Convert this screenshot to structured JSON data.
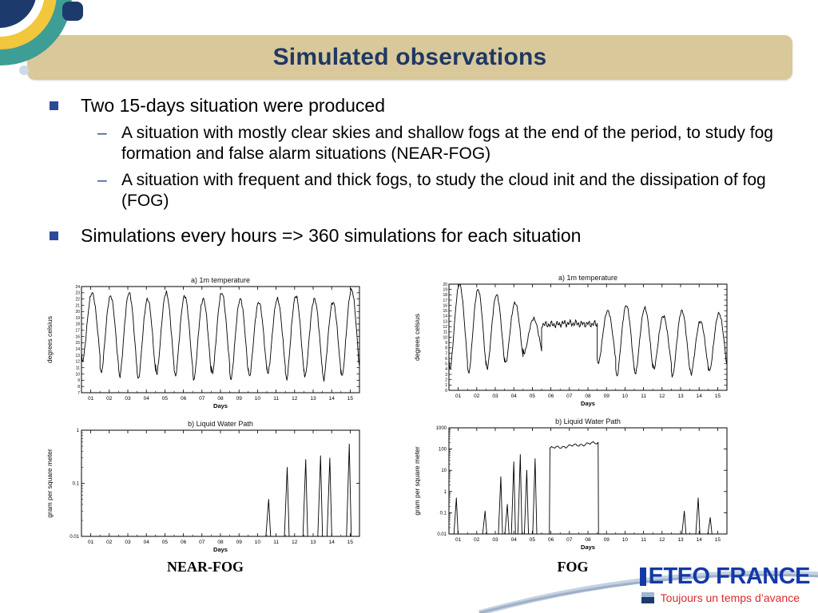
{
  "slide": {
    "title": "Simulated observations",
    "sub_marker": "–",
    "bullets": [
      {
        "text": "Two 15-days situation were produced",
        "subs": [
          "A situation with mostly clear skies and shallow fogs at the end of the period, to study fog formation and false alarm situations (NEAR-FOG)",
          "A situation with frequent and thick fogs, to study the cloud init and the dissipation of fog (FOG)"
        ]
      },
      {
        "text": "Simulations every hours => 360 simulations for each situation",
        "subs": []
      }
    ],
    "chart_captions": {
      "left": "NEAR-FOG",
      "right": "FOG"
    },
    "logo": {
      "name": "ETEO FRANCE",
      "tagline": "Toujours un temps d’avance"
    }
  },
  "colors": {
    "header_bar": "#d9c89a",
    "title_blue": "#1f3864",
    "bullet_blue": "#2b4a9b",
    "logo_blue": "#1439a6",
    "tagline_red": "#d92b30",
    "corner_navy": "#1d3a6d",
    "corner_teal": "#3d9e95",
    "corner_yellow": "#f2c63d",
    "chart_line": "#000000"
  },
  "chart_data": [
    {
      "id": "nearfog-temp",
      "type": "line",
      "panel": "NEAR-FOG",
      "title": "a) 1m temperature",
      "ylabel": "degrees celsius",
      "xlabel": "Days",
      "xticks": [
        "01",
        "02",
        "03",
        "04",
        "05",
        "06",
        "07",
        "08",
        "09",
        "10",
        "11",
        "12",
        "13",
        "14",
        "15"
      ],
      "ylim": [
        7,
        24
      ],
      "ytick_step": 1,
      "series": [
        {
          "name": "1m temperature",
          "daily_min": [
            12,
            10,
            9.5,
            9,
            10,
            9.5,
            9,
            10,
            9,
            9.5,
            10,
            9,
            9.5,
            9,
            9.5
          ],
          "daily_max": [
            23,
            22.5,
            23,
            22,
            23,
            22.5,
            22,
            23,
            22,
            21.5,
            22,
            22.5,
            22,
            21.5,
            23.5
          ]
        }
      ]
    },
    {
      "id": "fog-temp",
      "type": "line",
      "panel": "FOG",
      "title": "a) 1m temperature",
      "ylabel": "degrees celsius",
      "xlabel": "Days",
      "xticks": [
        "01",
        "02",
        "03",
        "04",
        "05",
        "06",
        "07",
        "08",
        "09",
        "10",
        "11",
        "12",
        "13",
        "14",
        "15"
      ],
      "ylim": [
        0,
        20
      ],
      "ytick_step": 1,
      "series": [
        {
          "name": "1m temperature",
          "daily_min": [
            4,
            3,
            4,
            5,
            7,
            11.9,
            12.1,
            12.0,
            5,
            2.5,
            3,
            4,
            2.5,
            3,
            3.5
          ],
          "daily_max": [
            20,
            19,
            18,
            16.5,
            13.5,
            12.9,
            13.1,
            13.0,
            15,
            16,
            15.5,
            14,
            15,
            13,
            14.5
          ]
        }
      ]
    },
    {
      "id": "nearfog-lwp",
      "type": "line",
      "panel": "NEAR-FOG",
      "title": "b) Liquid Water Path",
      "ylabel": "gram per square meter",
      "xlabel": "Days",
      "xticks": [
        "01",
        "02",
        "03",
        "04",
        "05",
        "06",
        "07",
        "08",
        "09",
        "10",
        "11",
        "12",
        "13",
        "14",
        "15"
      ],
      "ylim": [
        0.01,
        1
      ],
      "yticks": [
        0.01,
        0.1,
        1
      ],
      "spike_width": 0.15,
      "spikes": [
        {
          "x": 10.6,
          "peak": 0.05
        },
        {
          "x": 11.6,
          "peak": 0.2
        },
        {
          "x": 12.6,
          "peak": 0.28
        },
        {
          "x": 13.4,
          "peak": 0.33
        },
        {
          "x": 13.9,
          "peak": 0.3
        },
        {
          "x": 14.95,
          "peak": 0.55
        }
      ]
    },
    {
      "id": "fog-lwp",
      "type": "line",
      "panel": "FOG",
      "title": "b) Liquid Water Path",
      "ylabel": "gram per square meter",
      "xlabel": "Days",
      "xticks": [
        "01",
        "02",
        "03",
        "04",
        "05",
        "06",
        "07",
        "08",
        "09",
        "10",
        "11",
        "12",
        "13",
        "14",
        "15"
      ],
      "ylim": [
        0.01,
        1000
      ],
      "yticks": [
        0.01,
        0.1,
        1,
        10,
        100,
        1000
      ],
      "spike_width": 0.13,
      "spikes": [
        {
          "x": 0.9,
          "peak": 0.5
        },
        {
          "x": 2.45,
          "peak": 0.12
        },
        {
          "x": 3.3,
          "peak": 5
        },
        {
          "x": 3.65,
          "peak": 0.25
        },
        {
          "x": 4.0,
          "peak": 25
        },
        {
          "x": 4.35,
          "peak": 55
        },
        {
          "x": 4.7,
          "peak": 10
        },
        {
          "x": 5.15,
          "peak": 35
        },
        {
          "x": 13.2,
          "peak": 0.12
        },
        {
          "x": 13.95,
          "peak": 0.5
        },
        {
          "x": 14.6,
          "peak": 0.06
        }
      ],
      "block": {
        "x1": 5.95,
        "x2": 8.55,
        "top_start": 110,
        "top_end": 200
      }
    }
  ]
}
